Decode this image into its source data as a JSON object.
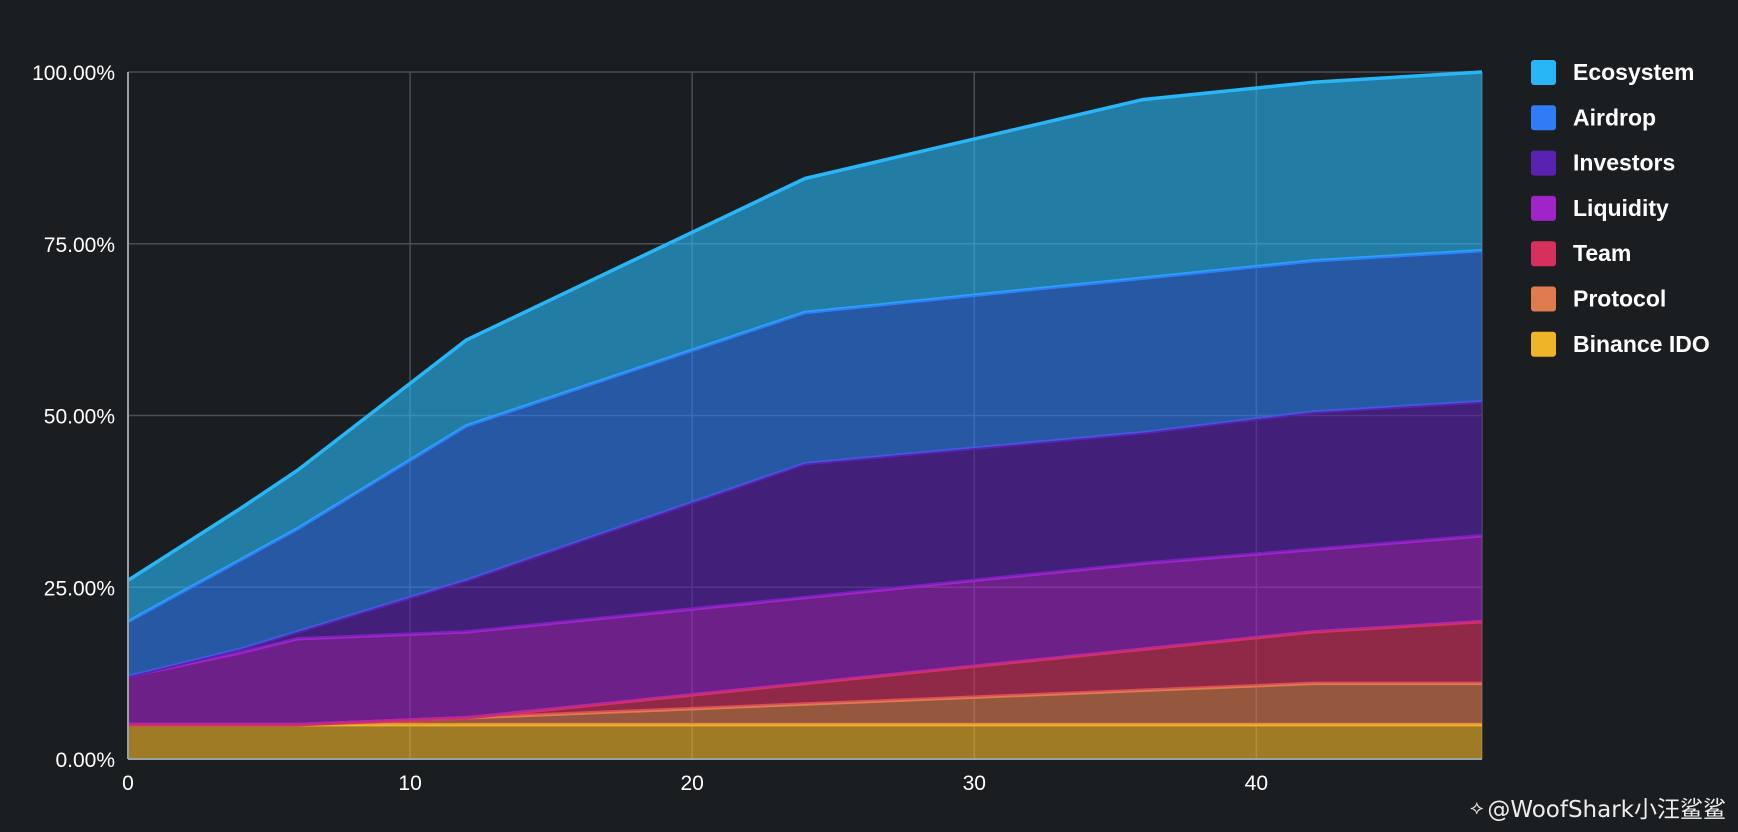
{
  "chart_data": {
    "type": "area",
    "stacked": true,
    "title": "",
    "xlabel": "",
    "ylabel": "",
    "xlim": [
      0,
      48
    ],
    "ylim": [
      0,
      100
    ],
    "x_ticks": [
      0,
      10,
      20,
      30,
      40
    ],
    "y_ticks": [
      "0.00%",
      "25.00%",
      "50.00%",
      "75.00%",
      "100.00%"
    ],
    "y_tick_values": [
      0,
      25,
      50,
      75,
      100
    ],
    "grid": true,
    "legend_position": "right",
    "x": [
      0,
      4,
      6,
      12,
      24,
      36,
      42,
      48
    ],
    "series": [
      {
        "name": "Binance IDO",
        "color": "#f0b429",
        "cumulative": [
          5,
          5,
          5,
          5,
          5,
          5,
          5,
          5
        ]
      },
      {
        "name": "Protocol",
        "color": "#e07b4f",
        "cumulative": [
          5,
          5,
          5,
          6,
          8,
          10,
          11,
          11
        ]
      },
      {
        "name": "Team",
        "color": "#d6305f",
        "cumulative": [
          5,
          5,
          5,
          6,
          11,
          16,
          18.5,
          20
        ]
      },
      {
        "name": "Liquidity",
        "color": "#a024c8",
        "cumulative": [
          12,
          15.5,
          17.5,
          18.5,
          23.5,
          28.5,
          30.5,
          32.5
        ]
      },
      {
        "name": "Investors",
        "color": "#5a22b0",
        "cumulative": [
          12,
          16,
          18.5,
          26,
          43,
          47.5,
          50.5,
          52
        ]
      },
      {
        "name": "Airdrop",
        "color": "#2f7cf6",
        "cumulative": [
          20,
          29,
          33.5,
          48.5,
          65,
          70,
          72.5,
          74
        ]
      },
      {
        "name": "Ecosystem",
        "color": "#29b6f6",
        "cumulative": [
          26,
          36.5,
          42,
          61,
          84.5,
          96,
          98.5,
          100
        ]
      }
    ],
    "legend_order": [
      "Ecosystem",
      "Airdrop",
      "Investors",
      "Liquidity",
      "Team",
      "Protocol",
      "Binance IDO"
    ]
  },
  "watermark": {
    "text": "@WoofShark小汪鲨鲨",
    "icon": "binance-diamond-icon"
  }
}
